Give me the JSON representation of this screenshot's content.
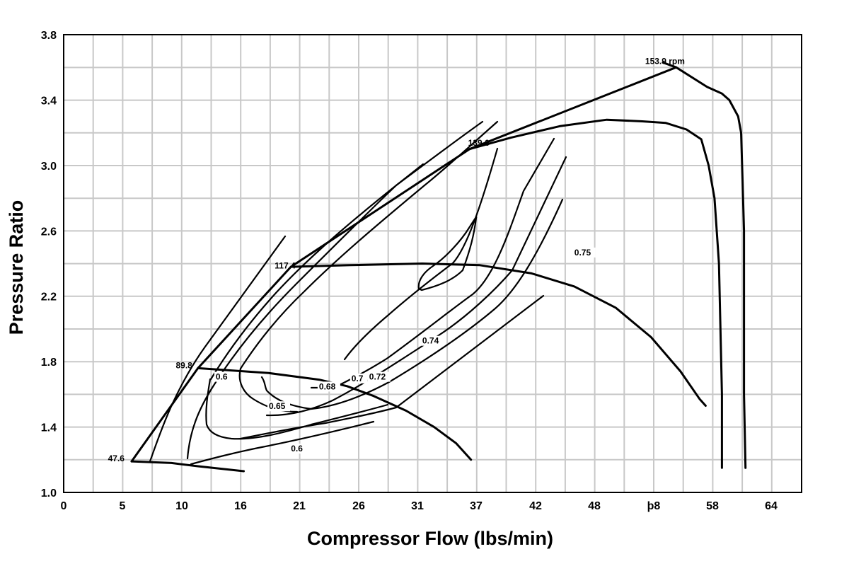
{
  "chart_data": {
    "type": "line",
    "xlabel": "Compressor Flow (lbs/min)",
    "ylabel": "Pressure Ratio",
    "x_tick_labels": [
      "0",
      "5",
      "10",
      "16",
      "21",
      "26",
      "31",
      "37",
      "42",
      "48",
      "þ8",
      "58",
      "64"
    ],
    "y_tick_labels": [
      "1.0",
      "1.4",
      "1.8",
      "2.2",
      "2.6",
      "3.0",
      "3.4",
      "3.8"
    ],
    "ylim": [
      1.0,
      3.8
    ],
    "grid": true,
    "annotations": [
      {
        "text": "153.9 rpm",
        "x": 39.4,
        "y": 3.62
      },
      {
        "text": "139.6",
        "x": 27.4,
        "y": 3.12
      },
      {
        "text": "117.4",
        "x": 14.3,
        "y": 2.37
      },
      {
        "text": "89.8",
        "x": 7.6,
        "y": 1.76
      },
      {
        "text": "47.6",
        "x": 3.0,
        "y": 1.19
      },
      {
        "text": "0.75",
        "x": 34.6,
        "y": 2.45
      },
      {
        "text": "0.74",
        "x": 24.3,
        "y": 1.91
      },
      {
        "text": "0.72",
        "x": 20.7,
        "y": 1.69
      },
      {
        "text": "0.7",
        "x": 19.5,
        "y": 1.68
      },
      {
        "text": "0.68",
        "x": 17.3,
        "y": 1.63
      },
      {
        "text": "0.6",
        "x": 10.3,
        "y": 1.69
      },
      {
        "text": "0.65",
        "x": 13.9,
        "y": 1.51
      },
      {
        "text": "0.6",
        "x": 15.4,
        "y": 1.25
      }
    ],
    "series": [
      {
        "values": [
          {
            "x": 4.6,
            "y": 1.19
          },
          {
            "x": 9.1,
            "y": 1.76
          },
          {
            "x": 15.4,
            "y": 2.38
          },
          {
            "x": 27.5,
            "y": 3.1
          },
          {
            "x": 41.5,
            "y": 3.6
          }
        ]
      },
      {
        "values": [
          {
            "x": 40.6,
            "y": 3.63
          },
          {
            "x": 41.5,
            "y": 3.6
          },
          {
            "x": 43.6,
            "y": 3.48
          },
          {
            "x": 44.6,
            "y": 3.44
          },
          {
            "x": 45.1,
            "y": 3.4
          },
          {
            "x": 45.7,
            "y": 3.3
          },
          {
            "x": 45.9,
            "y": 3.2
          },
          {
            "x": 46.0,
            "y": 2.9
          },
          {
            "x": 46.1,
            "y": 2.6
          },
          {
            "x": 46.1,
            "y": 1.6
          },
          {
            "x": 46.2,
            "y": 1.15
          }
        ]
      },
      {
        "values": [
          {
            "x": 27.5,
            "y": 3.1
          },
          {
            "x": 30.3,
            "y": 3.17
          },
          {
            "x": 33.6,
            "y": 3.24
          },
          {
            "x": 36.8,
            "y": 3.28
          },
          {
            "x": 39.2,
            "y": 3.27
          },
          {
            "x": 40.8,
            "y": 3.26
          },
          {
            "x": 42.2,
            "y": 3.22
          },
          {
            "x": 43.2,
            "y": 3.16
          },
          {
            "x": 43.7,
            "y": 3.0
          },
          {
            "x": 44.1,
            "y": 2.8
          },
          {
            "x": 44.4,
            "y": 2.4
          },
          {
            "x": 44.6,
            "y": 1.6
          },
          {
            "x": 44.6,
            "y": 1.15
          }
        ]
      },
      {
        "values": [
          {
            "x": 9.1,
            "y": 1.76
          },
          {
            "x": 13.9,
            "y": 1.73
          },
          {
            "x": 17.3,
            "y": 1.69
          },
          {
            "x": 19.2,
            "y": 1.65
          },
          {
            "x": 21.0,
            "y": 1.59
          },
          {
            "x": 23.2,
            "y": 1.5
          },
          {
            "x": 25.1,
            "y": 1.4
          },
          {
            "x": 26.6,
            "y": 1.3
          },
          {
            "x": 27.6,
            "y": 1.2
          }
        ]
      },
      {
        "values": [
          {
            "x": 15.4,
            "y": 2.38
          },
          {
            "x": 19.4,
            "y": 2.39
          },
          {
            "x": 24.3,
            "y": 2.4
          },
          {
            "x": 28.2,
            "y": 2.39
          },
          {
            "x": 31.7,
            "y": 2.34
          },
          {
            "x": 34.6,
            "y": 2.26
          },
          {
            "x": 37.4,
            "y": 2.13
          },
          {
            "x": 39.8,
            "y": 1.95
          },
          {
            "x": 41.8,
            "y": 1.74
          },
          {
            "x": 43.1,
            "y": 1.57
          },
          {
            "x": 43.5,
            "y": 1.53
          }
        ]
      },
      {
        "values": [
          {
            "x": 4.6,
            "y": 1.19
          },
          {
            "x": 7.3,
            "y": 1.18
          },
          {
            "x": 9.1,
            "y": 1.16
          },
          {
            "x": 12.2,
            "y": 1.13
          }
        ]
      }
    ]
  }
}
